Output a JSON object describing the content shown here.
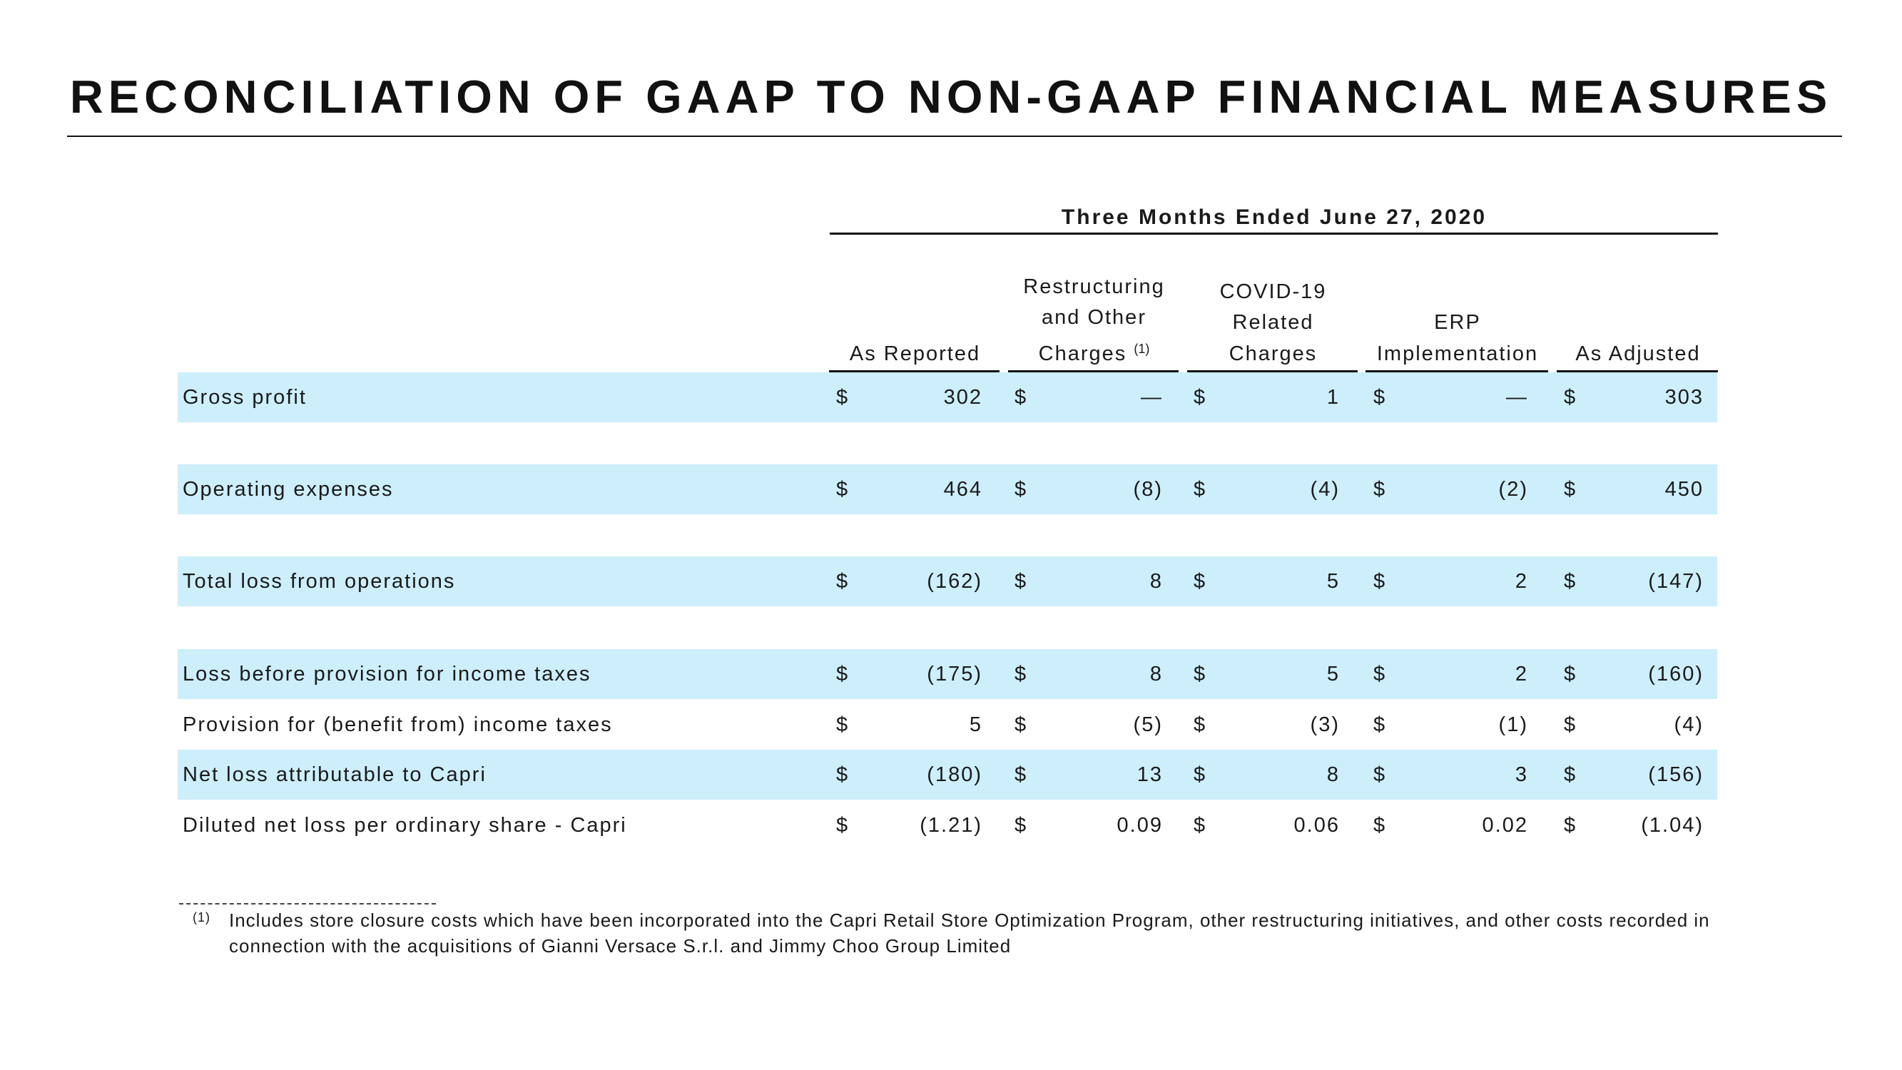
{
  "title": "RECONCILIATION OF GAAP TO NON-GAAP FINANCIAL MEASURES",
  "period": "Three Months Ended June 27, 2020",
  "columns": [
    {
      "lines": [
        "As Reported"
      ],
      "sup": ""
    },
    {
      "lines": [
        "Restructuring",
        "and Other",
        "Charges"
      ],
      "sup": "(1)"
    },
    {
      "lines": [
        "COVID-19",
        "Related",
        "Charges"
      ],
      "sup": ""
    },
    {
      "lines": [
        "ERP",
        "Implementation"
      ],
      "sup": ""
    },
    {
      "lines": [
        "As Adjusted"
      ],
      "sup": ""
    }
  ],
  "currency_symbol": "$",
  "rows": [
    {
      "label": "Gross profit",
      "shaded": true,
      "values": [
        "302",
        "—",
        "1",
        "—",
        "303"
      ]
    },
    {
      "label": "Operating expenses",
      "shaded": true,
      "values": [
        "464",
        "(8)",
        "(4)",
        "(2)",
        "450"
      ]
    },
    {
      "label": "Total loss from operations",
      "shaded": true,
      "values": [
        "(162)",
        "8",
        "5",
        "2",
        "(147)"
      ]
    },
    {
      "label": "Loss before provision for income taxes",
      "shaded": true,
      "values": [
        "(175)",
        "8",
        "5",
        "2",
        "(160)"
      ]
    },
    {
      "label": "Provision for (benefit from) income taxes",
      "shaded": false,
      "values": [
        "5",
        "(5)",
        "(3)",
        "(1)",
        "(4)"
      ]
    },
    {
      "label": "Net loss attributable to Capri",
      "shaded": true,
      "values": [
        "(180)",
        "13",
        "8",
        "3",
        "(156)"
      ]
    },
    {
      "label": "Diluted net loss per ordinary share - Capri",
      "shaded": false,
      "values": [
        "(1.21)",
        "0.09",
        "0.06",
        "0.02",
        "(1.04)"
      ]
    }
  ],
  "footnote": {
    "marker": "(1)",
    "text": "Includes store closure costs which have been incorporated into the Capri Retail Store Optimization Program, other restructuring initiatives, and other costs recorded in connection with the acquisitions of Gianni Versace S.r.l. and Jimmy Choo Group Limited"
  },
  "colors": {
    "row_shade": "#cdeefb",
    "text": "#1a1a1a",
    "rule": "#111111"
  }
}
